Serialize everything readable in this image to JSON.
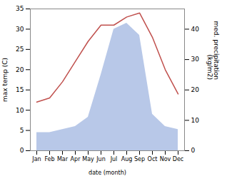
{
  "chart_data": {
    "type": "line",
    "xlabel": "date (month)",
    "ylabel": "max temp (C)",
    "y2label": "med. precipitation\n(kg/m2)",
    "categories": [
      "Jan",
      "Feb",
      "Mar",
      "Apr",
      "May",
      "Jun",
      "Jul",
      "Aug",
      "Sep",
      "Oct",
      "Nov",
      "Dec"
    ],
    "series": [
      {
        "type": "area",
        "axis": "y2",
        "color": "#b8c8e8",
        "values": [
          6,
          6,
          7,
          8,
          11,
          25,
          40,
          42,
          38,
          12,
          8,
          7
        ]
      },
      {
        "type": "line",
        "color": "#c0504d",
        "values": [
          12,
          13,
          17,
          22,
          27,
          31,
          31,
          33,
          34,
          28,
          20,
          14
        ]
      }
    ],
    "ylim": [
      0,
      35
    ],
    "yticks": [
      0,
      5,
      10,
      15,
      20,
      25,
      30,
      35
    ],
    "y2lim": [
      0,
      46.67
    ],
    "y2ticks": [
      0,
      10,
      20,
      30,
      40
    ],
    "grid": false
  }
}
